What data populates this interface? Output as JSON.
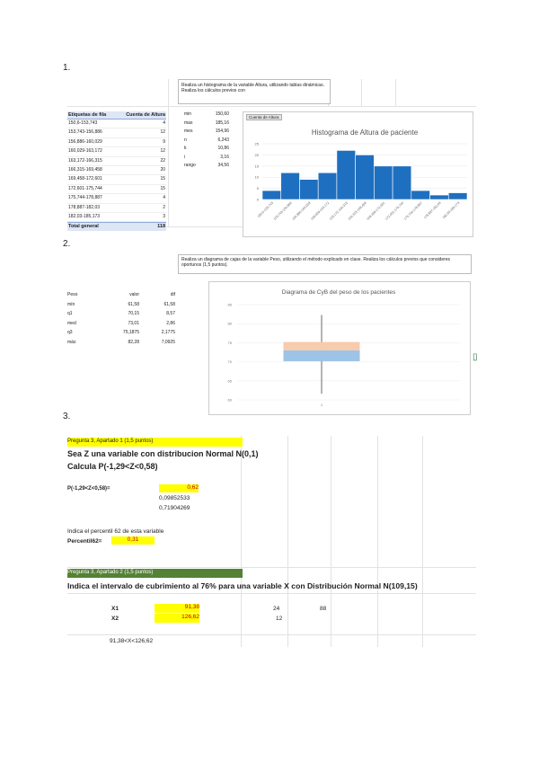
{
  "sections": [
    "1.",
    "2.",
    "3."
  ],
  "q1": {
    "instruction": "Realiza un histograma de la variable Altura, utilizando tablas dinámicas. Realiza los cálculos previos con",
    "pivot_headers": [
      "Etiquetas de fila",
      "Cuenta de Altura"
    ],
    "total_label": "Total general",
    "total": "118",
    "stats": [
      [
        "min",
        "150,60"
      ],
      [
        "max",
        "185,16"
      ],
      [
        "mes",
        "154,96"
      ],
      [
        "n",
        "6,243"
      ],
      [
        "k",
        "10,86"
      ],
      [
        "i",
        "3,16"
      ],
      [
        "rango",
        "34,56"
      ]
    ],
    "button": "Cuenta de Altura"
  },
  "q2": {
    "instruction": "Realiza un diagrama de cajas de la variable Peso, utilizando el método explicado en clase. Realiza los cálculos previos que consideres oportunos (1,5 puntos).",
    "table_headers": [
      "Peso",
      "valor",
      "dif"
    ],
    "dif": [
      "61,58",
      "8,57",
      "2,86",
      "2,1775",
      "7,0925"
    ]
  },
  "q3": {
    "part1_header": "Pregunta 3, Apartado 1 (1,5 puntos)",
    "line1": "Sea Z una variable con distribucion Normal N(0,1)",
    "line2": "Calcula P(-1,29<Z<0,58)",
    "prob_label": "P(-1,29<Z<0,58)=",
    "prob": "0,62",
    "cdf_low": "0,09852533",
    "cdf_high": "0,71904269",
    "pct_question": "Indica el percentil 62 de esta variable",
    "pct_label": "Percentil62=",
    "pct": "0,31",
    "part2_header": "Pregunta 3, Apartado 2 (1,5 puntos)",
    "line3": "Indica el intervalo de cubrimiento al 76% para una variable X con Distribución Normal N(109,15)",
    "x1_label": "X1",
    "x1": "91,38",
    "x1_a": "24",
    "x1_b": "88",
    "x2_label": "X2",
    "x2": "126,62",
    "x2_a": "12",
    "interval": "91,38<X<126,62"
  },
  "chart_data": [
    {
      "type": "histogram",
      "title": "Histograma de Altura de paciente",
      "color": "#1f6fc0",
      "categories": [
        "150,6-153,743",
        "153,743-156,886",
        "156,886-160,029",
        "160,029-163,172",
        "163,172-166,315",
        "166,315-169,458",
        "169,458-172,601",
        "172,601-175,744",
        "175,744-178,887",
        "178,887-182,03",
        "182,03-185,173"
      ],
      "values": [
        4,
        12,
        9,
        12,
        22,
        20,
        15,
        15,
        4,
        2,
        3
      ],
      "ylim": [
        0,
        25
      ],
      "yticks": [
        0,
        5,
        10,
        15,
        20,
        25
      ]
    },
    {
      "type": "box",
      "title": "Diagrama de CyB del peso de los pacientes",
      "labels": [
        "mín",
        "q1",
        "med",
        "q3",
        "máx"
      ],
      "values": [
        61.58,
        70.15,
        73.01,
        75.1875,
        82.28
      ],
      "value_labels": [
        "61,58",
        "70,15",
        "73,01",
        "75,1875",
        "82,28"
      ],
      "colors": [
        "#9dc3e6",
        "#f8cbad"
      ],
      "x_label": "1",
      "ylim": [
        60,
        85
      ],
      "yticks": [
        60,
        65,
        70,
        75,
        80,
        85
      ]
    }
  ]
}
